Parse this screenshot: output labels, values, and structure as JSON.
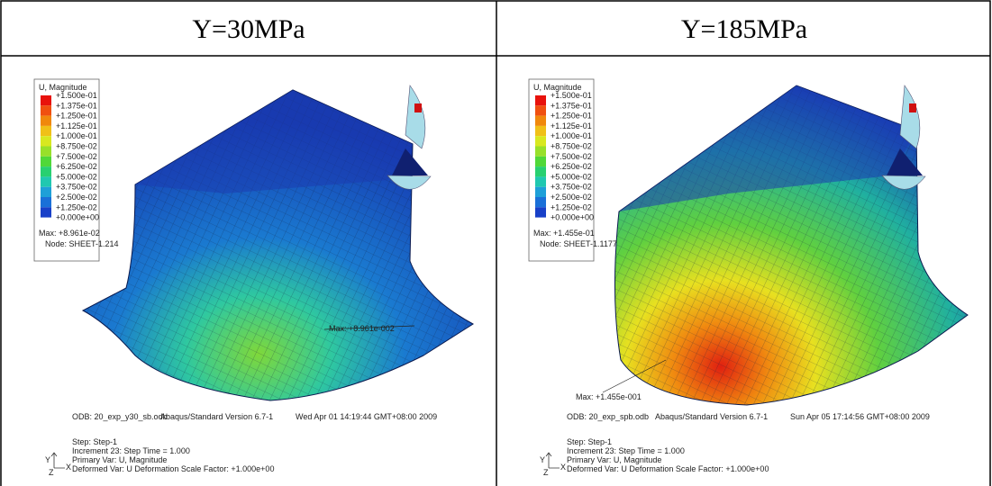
{
  "table": {
    "headers": [
      "Y=30MPa",
      "Y=185MPa"
    ]
  },
  "panels": [
    {
      "legend_title": "U, Magnitude",
      "legend_values": [
        "+1.500e-01",
        "+1.375e-01",
        "+1.250e-01",
        "+1.125e-01",
        "+1.000e-01",
        "+8.750e-02",
        "+7.500e-02",
        "+6.250e-02",
        "+5.000e-02",
        "+3.750e-02",
        "+2.500e-02",
        "+1.250e-02",
        "+0.000e+00"
      ],
      "max": "Max: +8.961e-02",
      "node": "Node: SHEET-1.214",
      "annotation": "Max: +8.961e-002",
      "odb": "ODB: 20_exp_y30_sb.odb",
      "version": "Abaqus/Standard Version 6.7-1",
      "date": "Wed Apr 01 14:19:44 GMT+08:00 2009",
      "step": "Step: Step-1",
      "increment": "Increment    23: Step Time =    1.000",
      "primary": "Primary Var: U, Magnitude",
      "deformed": "Deformed Var: U   Deformation Scale Factor: +1.000e+00",
      "axes": [
        "Y",
        "Z",
        "X"
      ]
    },
    {
      "legend_title": "U, Magnitude",
      "legend_values": [
        "+1.500e-01",
        "+1.375e-01",
        "+1.250e-01",
        "+1.125e-01",
        "+1.000e-01",
        "+8.750e-02",
        "+7.500e-02",
        "+6.250e-02",
        "+5.000e-02",
        "+3.750e-02",
        "+2.500e-02",
        "+1.250e-02",
        "+0.000e+00"
      ],
      "max": "Max: +1.455e-01",
      "node": "Node: SHEET-1.1177",
      "annotation": "Max: +1.455e-001",
      "odb": "ODB: 20_exp_spb.odb",
      "version": "Abaqus/Standard Version 6.7-1",
      "date": "Sun Apr 05 17:14:56 GMT+08:00 2009",
      "step": "Step: Step-1",
      "increment": "Increment    23: Step Time =    1.000",
      "primary": "Primary Var: U, Magnitude",
      "deformed": "Deformed Var: U   Deformation Scale Factor: +1.000e+00",
      "axes": [
        "Y",
        "Z",
        "X"
      ]
    }
  ]
}
